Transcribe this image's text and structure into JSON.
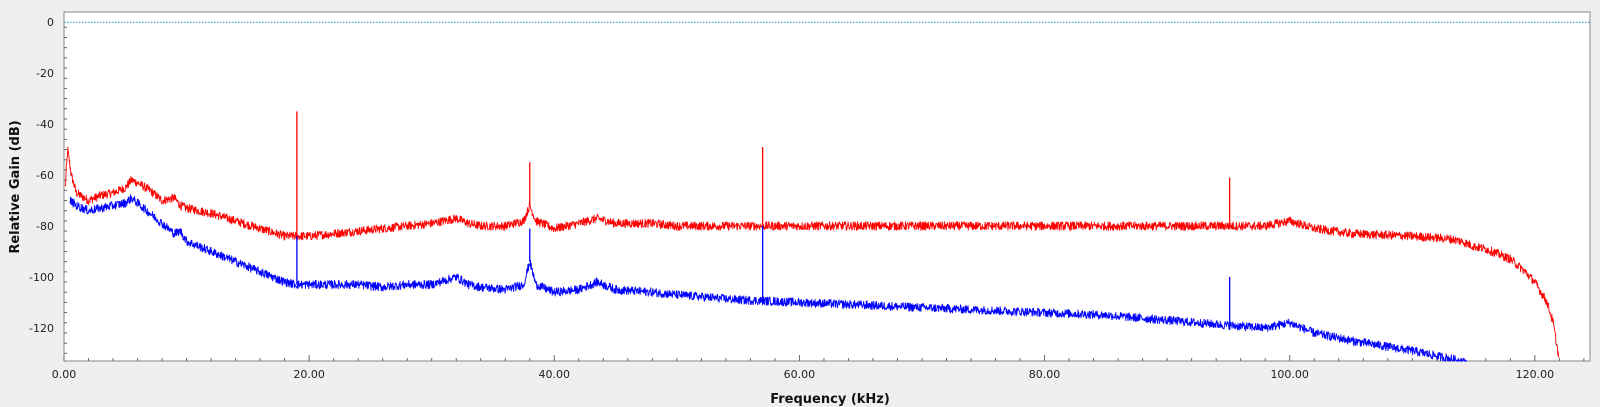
{
  "chart_data": {
    "type": "line",
    "title": "",
    "xlabel": "Frequency (kHz)",
    "ylabel": "Relative Gain (dB)",
    "xlim": [
      0,
      124.5
    ],
    "ylim": [
      -133,
      4
    ],
    "grid": false,
    "legend": "none",
    "x_ticks": [
      0,
      20,
      40,
      60,
      80,
      100,
      120
    ],
    "x_tick_labels": [
      "0.00",
      "20.00",
      "40.00",
      "60.00",
      "80.00",
      "100.00",
      "120.00"
    ],
    "y_ticks": [
      0,
      -20,
      -40,
      -60,
      -80,
      -100,
      -120
    ],
    "y_tick_labels": [
      "0",
      "-20",
      "-40",
      "-60",
      "-80",
      "-100",
      "-120"
    ],
    "reference_line": {
      "y": 0,
      "color": "#1a8fa8",
      "style": "dotted"
    },
    "series": [
      {
        "color": "#ff0000",
        "x": [
          0.1,
          0.3,
          0.6,
          1,
          2,
          3,
          4,
          5,
          5.5,
          6,
          7,
          8,
          9,
          9.5,
          10,
          12,
          14,
          16,
          18,
          19,
          20,
          22,
          24,
          26,
          28,
          30,
          32,
          33,
          34,
          36,
          37.5,
          38,
          38.5,
          40,
          42,
          43.5,
          45,
          48,
          50,
          55,
          60,
          65,
          70,
          75,
          80,
          85,
          90,
          95,
          98,
          100,
          102,
          105,
          110,
          113,
          114,
          115,
          116,
          117,
          118,
          119,
          120,
          121,
          121.5,
          122
        ],
        "y": [
          -65,
          -50,
          -60,
          -67,
          -70,
          -68,
          -67,
          -65,
          -62,
          -63,
          -66,
          -70,
          -69,
          -72,
          -73,
          -75,
          -78,
          -81,
          -84,
          -84,
          -84,
          -83,
          -82,
          -81,
          -80,
          -79,
          -77,
          -79,
          -80,
          -80,
          -78,
          -72,
          -78,
          -81,
          -79,
          -77,
          -79,
          -79,
          -80,
          -80,
          -80,
          -80,
          -80,
          -80,
          -80,
          -80,
          -80,
          -80,
          -80,
          -78,
          -81,
          -83,
          -84,
          -85,
          -86,
          -88,
          -89,
          -91,
          -93,
          -97,
          -102,
          -110,
          -118,
          -133
        ]
      },
      {
        "color": "#0000ff",
        "x": [
          0.5,
          1,
          2,
          3,
          4,
          5,
          5.5,
          6,
          7,
          8,
          9,
          9.5,
          10,
          12,
          14,
          16,
          18,
          19,
          20,
          22,
          24,
          26,
          28,
          30,
          32,
          33,
          34,
          36,
          37.5,
          38,
          38.5,
          40,
          42,
          43.5,
          45,
          48,
          50,
          55,
          60,
          65,
          70,
          75,
          80,
          85,
          90,
          95,
          98,
          100,
          102,
          105,
          110,
          113,
          114,
          114.5
        ],
        "y": [
          -70,
          -72,
          -74,
          -73,
          -72,
          -71,
          -69,
          -71,
          -75,
          -79,
          -83,
          -82,
          -86,
          -90,
          -94,
          -98,
          -102,
          -103,
          -103,
          -103,
          -103,
          -104,
          -103,
          -103,
          -100,
          -103,
          -104,
          -105,
          -103,
          -94,
          -103,
          -106,
          -105,
          -102,
          -105,
          -106,
          -107,
          -109,
          -110,
          -111,
          -112,
          -113,
          -114,
          -115,
          -117,
          -119,
          -120,
          -118,
          -122,
          -125,
          -129,
          -132,
          -133,
          -134
        ]
      }
    ],
    "spikes": [
      {
        "series": 0,
        "x": 19,
        "y": -35
      },
      {
        "series": 1,
        "x": 19,
        "y": -84
      },
      {
        "series": 0,
        "x": 38,
        "y": -55
      },
      {
        "series": 1,
        "x": 38,
        "y": -81
      },
      {
        "series": 0,
        "x": 57,
        "y": -49
      },
      {
        "series": 1,
        "x": 57,
        "y": -80
      },
      {
        "series": 0,
        "x": 95.1,
        "y": -61
      },
      {
        "series": 1,
        "x": 95.1,
        "y": -100
      }
    ]
  }
}
